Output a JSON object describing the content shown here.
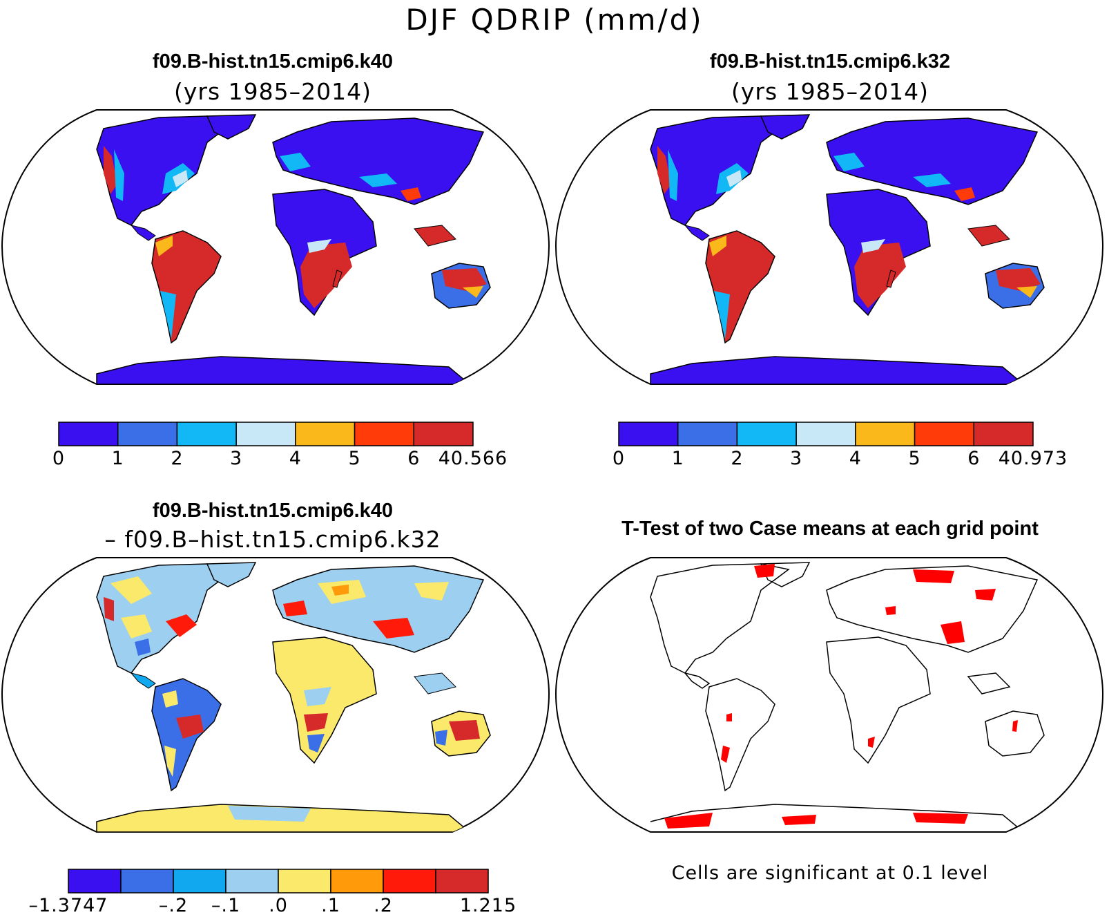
{
  "figure": {
    "title": "DJF QDRIP (mm/d)"
  },
  "panels": {
    "top_left": {
      "case": "f09.B-hist.tn15.cmip6.k40",
      "years": "(yrs 1985–2014)",
      "colorbar": {
        "colors": [
          "#3a10f0",
          "#3a6fe8",
          "#12b8f5",
          "#c9e8f7",
          "#fbb81a",
          "#ff3b0a",
          "#d62a2a"
        ],
        "labels": [
          "0",
          "1",
          "2",
          "3",
          "4",
          "5",
          "6",
          "40.566"
        ]
      }
    },
    "top_right": {
      "case": "f09.B-hist.tn15.cmip6.k32",
      "years": "(yrs 1985–2014)",
      "colorbar": {
        "colors": [
          "#3a10f0",
          "#3a6fe8",
          "#12b8f5",
          "#c9e8f7",
          "#fbb81a",
          "#ff3b0a",
          "#d62a2a"
        ],
        "labels": [
          "0",
          "1",
          "2",
          "3",
          "4",
          "5",
          "6",
          "40.973"
        ]
      }
    },
    "bottom_left": {
      "case": "f09.B-hist.tn15.cmip6.k40",
      "minus_case": "– f09.B–hist.tn15.cmip6.k32",
      "colorbar": {
        "colors": [
          "#3a10f0",
          "#3a6fe8",
          "#12a8f0",
          "#9ccff0",
          "#fae96a",
          "#ff9a0a",
          "#ff1a0a",
          "#d62a2a"
        ],
        "labels": [
          "–1.3747",
          "",
          "–.2",
          "–.1",
          ".0",
          ".1",
          ".2",
          "",
          "1.215"
        ]
      }
    },
    "bottom_right": {
      "title": "T-Test of two Case means at each grid point",
      "note": "Cells are significant at 0.1 level",
      "significant_color": "#ff0000"
    }
  },
  "map_style": {
    "land_dry": "#3a10f0",
    "land_wet": "#d62a2a",
    "diff_neutral": "#9ccff0",
    "diff_pos": "#fae96a",
    "outline": "#000000"
  }
}
